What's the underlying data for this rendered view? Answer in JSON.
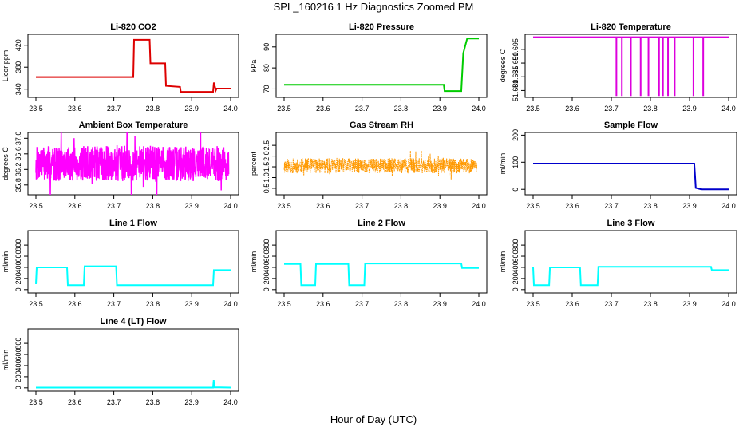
{
  "figure": {
    "title": "SPL_160216  1 Hz Diagnostics Zoomed PM",
    "xlabel": "Hour of Day (UTC)"
  },
  "chart_data": [
    {
      "id": "co2",
      "type": "line",
      "title": "Li-820 CO2",
      "ylabel": "Licor ppm",
      "color": "#dd0000",
      "xlim": [
        23.5,
        24.0
      ],
      "ylim": [
        325,
        440
      ],
      "xticks": [
        23.5,
        23.6,
        23.7,
        23.8,
        23.9,
        24.0
      ],
      "xtick_labels": [
        "23.5",
        "23.6",
        "23.7",
        "23.8",
        "23.9",
        "24.0"
      ],
      "yticks": [
        340,
        380,
        420
      ],
      "ytick_labels": [
        "340",
        "380",
        "420"
      ],
      "x": [
        23.5,
        23.75,
        23.752,
        23.792,
        23.794,
        23.832,
        23.834,
        23.87,
        23.872,
        23.955,
        23.957,
        23.962,
        23.964,
        24.0
      ],
      "y": [
        362,
        362,
        430,
        430,
        387,
        387,
        346,
        344,
        335,
        335,
        352,
        338,
        341,
        341
      ]
    },
    {
      "id": "pressure",
      "type": "line",
      "title": "Li-820 Pressure",
      "ylabel": "kPa",
      "color": "#00cc00",
      "xlim": [
        23.5,
        24.0
      ],
      "ylim": [
        66,
        96
      ],
      "xticks": [
        23.5,
        23.6,
        23.7,
        23.8,
        23.9,
        24.0
      ],
      "xtick_labels": [
        "23.5",
        "23.6",
        "23.7",
        "23.8",
        "23.9",
        "24.0"
      ],
      "yticks": [
        70,
        80,
        90
      ],
      "ytick_labels": [
        "70",
        "80",
        "90"
      ],
      "x": [
        23.5,
        23.91,
        23.912,
        23.955,
        23.96,
        23.97,
        24.0
      ],
      "y": [
        72,
        72,
        69,
        69,
        87,
        94,
        94
      ]
    },
    {
      "id": "temperature",
      "type": "line",
      "title": "Li-820 Temperature",
      "ylabel": "degrees C",
      "color": "#dd00dd",
      "xlim": [
        23.5,
        24.0
      ],
      "ylim": [
        51.6775,
        51.7005
      ],
      "xticks": [
        23.5,
        23.6,
        23.7,
        23.8,
        23.9,
        24.0
      ],
      "xtick_labels": [
        "23.5",
        "23.6",
        "23.7",
        "23.8",
        "23.9",
        "24.0"
      ],
      "yticks": [
        51.68,
        51.685,
        51.69,
        51.695
      ],
      "ytick_labels": [
        "51.680",
        "51.685",
        "51.690",
        "51.695"
      ],
      "base": 51.6995,
      "spike_low": 51.678,
      "spikes_x": [
        23.713,
        23.727,
        23.75,
        23.775,
        23.795,
        23.822,
        23.832,
        23.845,
        23.862,
        23.91,
        23.935
      ]
    },
    {
      "id": "ambient",
      "type": "line",
      "title": "Ambient Box Temperature",
      "ylabel": "degrees C",
      "color": "#ff00ff",
      "xlim": [
        23.5,
        24.0
      ],
      "ylim": [
        35.55,
        37.15
      ],
      "xticks": [
        23.5,
        23.6,
        23.7,
        23.8,
        23.9,
        24.0
      ],
      "xtick_labels": [
        "23.5",
        "23.6",
        "23.7",
        "23.8",
        "23.9",
        "24.0"
      ],
      "yticks": [
        35.8,
        36.2,
        36.6,
        37.0
      ],
      "ytick_labels": [
        "35.8",
        "36.2",
        "36.6",
        "37.0"
      ],
      "noise": {
        "x_start": 23.5,
        "x_end": 23.995,
        "center": 36.35,
        "amplitude": 0.45,
        "seed": 7
      }
    },
    {
      "id": "rh",
      "type": "scatter",
      "title": "Gas Stream RH",
      "ylabel": "percent",
      "color": "#ff9900",
      "xlim": [
        23.5,
        24.0
      ],
      "ylim": [
        0.2,
        3.1
      ],
      "xticks": [
        23.5,
        23.6,
        23.7,
        23.8,
        23.9,
        24.0
      ],
      "xtick_labels": [
        "23.5",
        "23.6",
        "23.7",
        "23.8",
        "23.9",
        "24.0"
      ],
      "yticks": [
        0.5,
        1.0,
        1.5,
        2.0,
        2.5
      ],
      "ytick_labels": [
        "0.5",
        "1.0",
        "1.5",
        "2.0",
        "2.5"
      ],
      "noise": {
        "x_start": 23.5,
        "x_end": 23.995,
        "center": 1.55,
        "amplitude": 0.35,
        "seed": 11
      }
    },
    {
      "id": "sample",
      "type": "line",
      "title": "Sample Flow",
      "ylabel": "ml/min",
      "color": "#0000cc",
      "xlim": [
        23.5,
        24.0
      ],
      "ylim": [
        -20,
        210
      ],
      "xticks": [
        23.5,
        23.6,
        23.7,
        23.8,
        23.9,
        24.0
      ],
      "xtick_labels": [
        "23.5",
        "23.6",
        "23.7",
        "23.8",
        "23.9",
        "24.0"
      ],
      "yticks": [
        0,
        100,
        200
      ],
      "ytick_labels": [
        "0",
        "100",
        "200"
      ],
      "x": [
        23.5,
        23.912,
        23.914,
        23.916,
        23.93,
        24.0
      ],
      "y": [
        95,
        95,
        50,
        5,
        0,
        0
      ]
    },
    {
      "id": "line1",
      "type": "line",
      "title": "Line 1 Flow",
      "ylabel": "ml/min",
      "color": "#00ffff",
      "xlim": [
        23.5,
        24.0
      ],
      "ylim": [
        -60,
        1060
      ],
      "xticks": [
        23.5,
        23.6,
        23.7,
        23.8,
        23.9,
        24.0
      ],
      "xtick_labels": [
        "23.5",
        "23.6",
        "23.7",
        "23.8",
        "23.9",
        "24.0"
      ],
      "yticks": [
        0,
        200,
        400,
        600,
        800
      ],
      "ytick_labels": [
        "0",
        "200",
        "400",
        "600",
        "800"
      ],
      "x": [
        23.5,
        23.502,
        23.58,
        23.582,
        23.623,
        23.625,
        23.706,
        23.708,
        23.955,
        23.957,
        24.0
      ],
      "y": [
        100,
        400,
        400,
        80,
        80,
        420,
        420,
        80,
        80,
        350,
        350
      ]
    },
    {
      "id": "line2",
      "type": "line",
      "title": "Line 2 Flow",
      "ylabel": "ml/min",
      "color": "#00ffff",
      "xlim": [
        23.5,
        24.0
      ],
      "ylim": [
        -60,
        1060
      ],
      "xticks": [
        23.5,
        23.6,
        23.7,
        23.8,
        23.9,
        24.0
      ],
      "xtick_labels": [
        "23.5",
        "23.6",
        "23.7",
        "23.8",
        "23.9",
        "24.0"
      ],
      "yticks": [
        0,
        200,
        400,
        600,
        800
      ],
      "ytick_labels": [
        "0",
        "200",
        "400",
        "600",
        "800"
      ],
      "x": [
        23.5,
        23.542,
        23.544,
        23.58,
        23.582,
        23.665,
        23.667,
        23.706,
        23.708,
        23.955,
        23.957,
        24.0
      ],
      "y": [
        460,
        460,
        80,
        80,
        460,
        460,
        80,
        80,
        470,
        470,
        390,
        390
      ]
    },
    {
      "id": "line3",
      "type": "line",
      "title": "Line 3 Flow",
      "ylabel": "ml/min",
      "color": "#00ffff",
      "xlim": [
        23.5,
        24.0
      ],
      "ylim": [
        -60,
        1060
      ],
      "xticks": [
        23.5,
        23.6,
        23.7,
        23.8,
        23.9,
        24.0
      ],
      "xtick_labels": [
        "23.5",
        "23.6",
        "23.7",
        "23.8",
        "23.9",
        "24.0"
      ],
      "yticks": [
        0,
        200,
        400,
        600,
        800
      ],
      "ytick_labels": [
        "0",
        "200",
        "400",
        "600",
        "800"
      ],
      "x": [
        23.5,
        23.502,
        23.541,
        23.543,
        23.62,
        23.622,
        23.665,
        23.667,
        23.955,
        23.957,
        24.0
      ],
      "y": [
        400,
        80,
        80,
        400,
        400,
        80,
        80,
        410,
        410,
        350,
        350
      ]
    },
    {
      "id": "line4",
      "type": "line",
      "title": "Line 4 (LT) Flow",
      "ylabel": "ml/min",
      "color": "#00ffff",
      "xlim": [
        23.5,
        24.0
      ],
      "ylim": [
        -60,
        1060
      ],
      "xticks": [
        23.5,
        23.6,
        23.7,
        23.8,
        23.9,
        24.0
      ],
      "xtick_labels": [
        "23.5",
        "23.6",
        "23.7",
        "23.8",
        "23.9",
        "24.0"
      ],
      "yticks": [
        0,
        200,
        400,
        600,
        800
      ],
      "ytick_labels": [
        "0",
        "200",
        "400",
        "600",
        "800"
      ],
      "x": [
        23.5,
        23.955,
        23.9565,
        23.958,
        24.0
      ],
      "y": [
        5,
        5,
        140,
        10,
        5
      ]
    }
  ]
}
